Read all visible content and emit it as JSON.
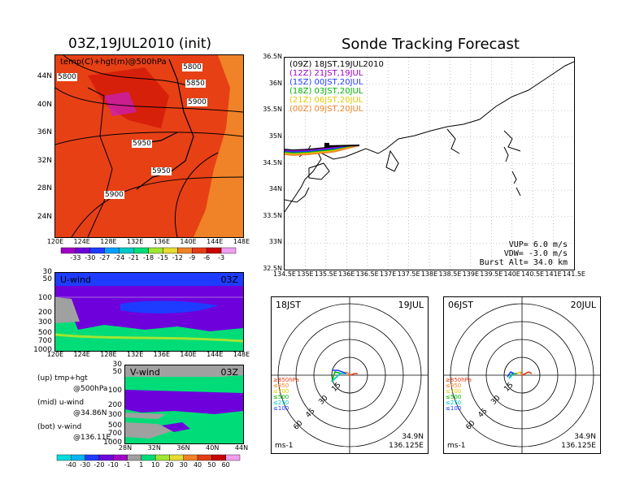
{
  "left_title": "03Z,19JUL2010 (init)",
  "main_title": "Sonde Tracking Forecast",
  "map500": {
    "field_label": "temp(C)+hgt(m)@500hPa",
    "lat_ticks": [
      "44N",
      "40N",
      "36N",
      "32N",
      "28N",
      "24N"
    ],
    "lon_ticks": [
      "120E",
      "124E",
      "128E",
      "132E",
      "136E",
      "140E",
      "144E",
      "148E"
    ],
    "contour_labels": [
      "5800",
      "5800",
      "5850",
      "5900",
      "5950",
      "5950",
      "5900"
    ],
    "colorbar_labels": [
      "-33",
      "-30",
      "-27",
      "-24",
      "-21",
      "-18",
      "-15",
      "-12",
      "-9",
      "-6",
      "-3"
    ],
    "colorbar_colors": [
      "#a000c8",
      "#6e00dc",
      "#1e3cff",
      "#00a0ff",
      "#00c8c8",
      "#00dc78",
      "#a0e632",
      "#e6dc32",
      "#f08228",
      "#e63c14",
      "#c80000",
      "#f0a0f0"
    ]
  },
  "uwind": {
    "label": "U-wind",
    "time": "03Z",
    "p_ticks": [
      "30",
      "50",
      "100",
      "200",
      "300",
      "500",
      "700",
      "1000"
    ],
    "lon_ticks": [
      "120E",
      "124E",
      "128E",
      "132E",
      "136E",
      "140E",
      "144E",
      "148E"
    ]
  },
  "vwind": {
    "label": "V-wind",
    "time": "03Z",
    "p_ticks": [
      "30",
      "50",
      "100",
      "200",
      "300",
      "500",
      "700",
      "1000"
    ],
    "lat_ticks": [
      "28N",
      "32N",
      "36N",
      "40N",
      "44N"
    ]
  },
  "legend_notes": [
    {
      "a": "(up) tmp+hgt",
      "b": "@500hPa"
    },
    {
      "a": "(mid) u-wind",
      "b": "@34.86N"
    },
    {
      "a": "(bot) v-wind",
      "b": "@136.11E"
    }
  ],
  "wind_colorbar": {
    "labels": [
      "-40",
      "-30",
      "-20",
      "-10",
      "-1",
      "1",
      "10",
      "20",
      "30",
      "40",
      "50",
      "60"
    ],
    "colors": [
      "#00dcdc",
      "#00b4f0",
      "#1e3cff",
      "#6e00dc",
      "#a000c8",
      "#a0a0a0",
      "#00dc78",
      "#a0e632",
      "#e6dc32",
      "#f08228",
      "#e63c14",
      "#c80000",
      "#f0a0f0"
    ]
  },
  "track": {
    "entries": [
      {
        "text": "(09Z)  18JST,19JUL2010",
        "color": "#000000"
      },
      {
        "text": "(12Z)  21JST,19JUL",
        "color": "#a000c8"
      },
      {
        "text": "(15Z)  00JST,20JUL",
        "color": "#1e3cff"
      },
      {
        "text": "(18Z)  03JST,20JUL",
        "color": "#00b400"
      },
      {
        "text": "(21Z)  06JST,20JUL",
        "color": "#e6c800"
      },
      {
        "text": "(00Z)  09JST,20JUL",
        "color": "#f08228"
      }
    ],
    "lat_ticks": [
      "36.5N",
      "36N",
      "35.5N",
      "35N",
      "34.5N",
      "34N",
      "33.5N",
      "33N",
      "32.5N"
    ],
    "lon_ticks": [
      "134.5E",
      "135E",
      "135.5E",
      "136E",
      "136.5E",
      "137E",
      "137.5E",
      "138E",
      "138.5E",
      "139E",
      "139.5E",
      "140E",
      "140.5E",
      "141E",
      "141.5E"
    ],
    "params": [
      "VUP=  6.0  m/s",
      "VDW=  -3.0  m/s",
      "Burst Alt=  34.0  km"
    ]
  },
  "hodo1": {
    "time": "18JST",
    "date": "19JUL",
    "unit": "ms-1",
    "lat": "34.9N",
    "lon": "136.125E",
    "rings": [
      "15",
      "30",
      "45",
      "60"
    ],
    "levels": [
      "≥850hPa",
      "≤850",
      "≤700",
      "≤500",
      "≤250",
      "≤100"
    ]
  },
  "hodo2": {
    "time": "06JST",
    "date": "20JUL",
    "unit": "ms-1",
    "lat": "34.9N",
    "lon": "136.125E",
    "rings": [
      "15",
      "30",
      "45",
      "60"
    ],
    "levels": [
      "≥850hPa",
      "≤850",
      "≤700",
      "≤500",
      "≤250",
      "≤100"
    ]
  },
  "level_colors": [
    "#e63c14",
    "#f08228",
    "#e6c800",
    "#00b400",
    "#00c8c8",
    "#1e3cff"
  ]
}
